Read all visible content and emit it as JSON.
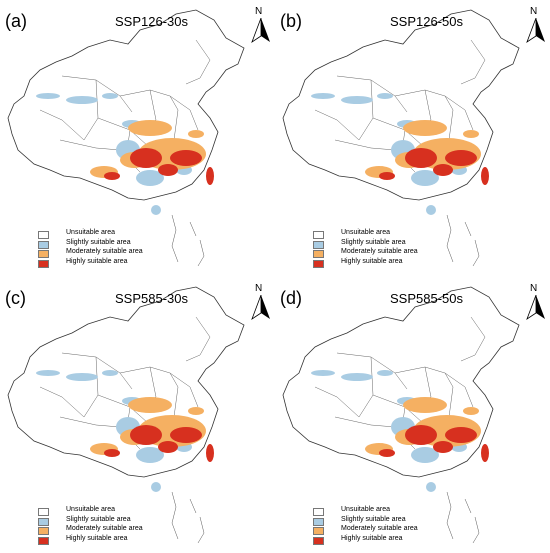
{
  "legend": [
    {
      "label": "Unsuitable area",
      "color": "#ffffff"
    },
    {
      "label": "Slightly suitable area",
      "color": "#a9cce3"
    },
    {
      "label": "Moderately suitable area",
      "color": "#f5b062"
    },
    {
      "label": "Highly suitable area",
      "color": "#d7301f"
    }
  ],
  "north_label": "N",
  "panels": [
    {
      "label": "(a)",
      "title": "SSP126-30s"
    },
    {
      "label": "(b)",
      "title": "SSP126-50s"
    },
    {
      "label": "(c)",
      "title": "SSP585-30s"
    },
    {
      "label": "(d)",
      "title": "SSP585-50s"
    }
  ]
}
